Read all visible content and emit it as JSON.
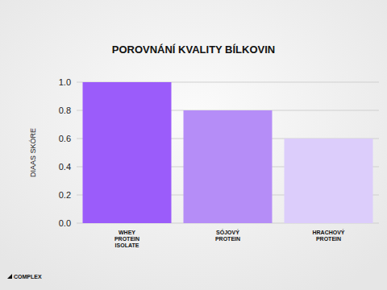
{
  "chart_data": {
    "type": "bar",
    "title": "POROVNÁNÍ KVALITY BÍLKOVIN",
    "y_label": "DIAAS SKÓRE",
    "categories": [
      "WHEY PROTEIN ISOLATE",
      "SÓJOVÝ PROTEIN",
      "HRACHOVÝ PROTEIN"
    ],
    "values": [
      1.0,
      0.8,
      0.6
    ],
    "colors": [
      "#9b5cfa",
      "#b58df7",
      "#dccdfb"
    ],
    "ylim": [
      0,
      1
    ],
    "yticks": [
      {
        "value": 0,
        "label": "0.0"
      },
      {
        "value": 0.2,
        "label": "0.2"
      },
      {
        "value": 0.4,
        "label": "0.4"
      },
      {
        "value": 0.6,
        "label": "0.6"
      },
      {
        "value": 0.8,
        "label": "0.8"
      },
      {
        "value": 1,
        "label": "1.0"
      }
    ],
    "grid": true,
    "brand": "COMPLEX"
  }
}
